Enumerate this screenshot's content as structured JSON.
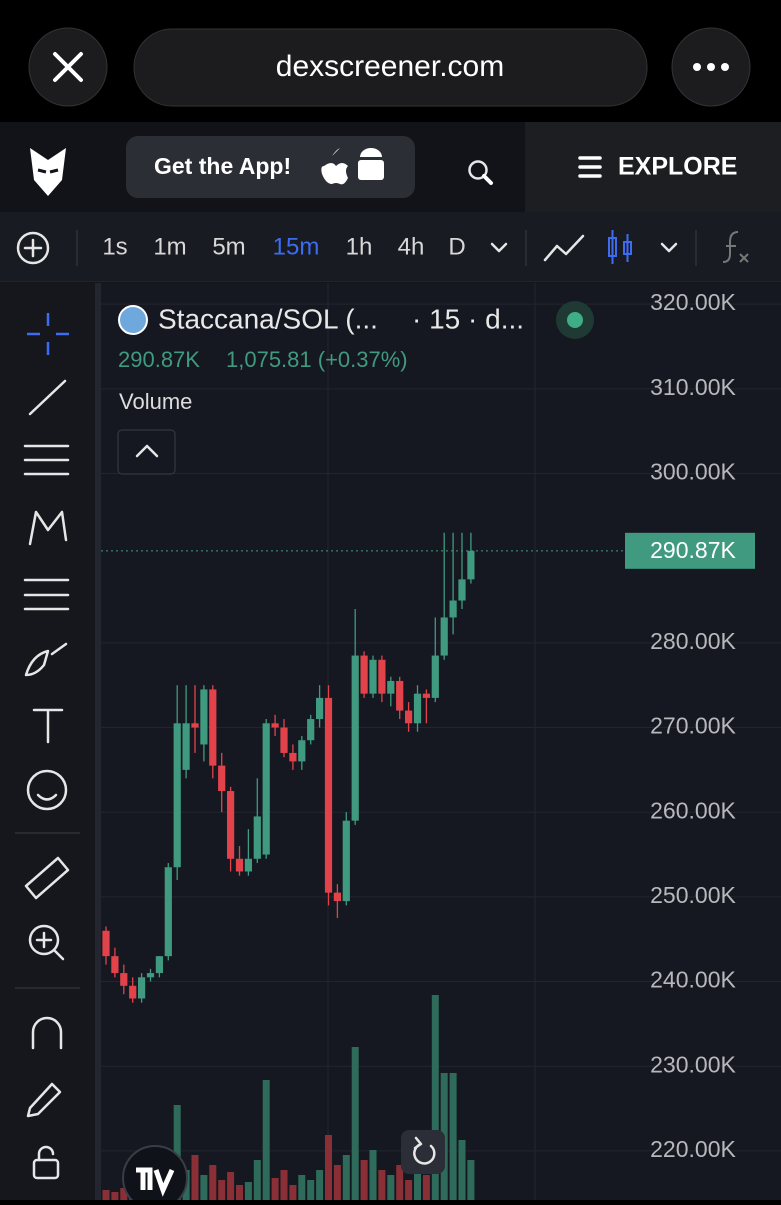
{
  "browser": {
    "url": "dexscreener.com"
  },
  "header": {
    "app_button": "Get the App!",
    "explore": "EXPLORE"
  },
  "toolbar": {
    "timeframes": [
      "1s",
      "1m",
      "5m",
      "15m",
      "1h",
      "4h",
      "D"
    ]
  },
  "chart_data": {
    "type": "candlestick",
    "title": "Staccana/SOL (...",
    "subtitle": "· 15 · d...",
    "legend": {
      "price": "290.87K",
      "change": "1,075.81 (+0.37%)",
      "volume": "Volume"
    },
    "up_color": "#3f9a80",
    "down_color": "#e2434b",
    "ohlc": [
      [
        246,
        246.5,
        242,
        243
      ],
      [
        243,
        244,
        240.5,
        241
      ],
      [
        241,
        242,
        238.5,
        239.5
      ],
      [
        239.5,
        240.5,
        237.5,
        238
      ],
      [
        238,
        241,
        237.5,
        240.5
      ],
      [
        240.5,
        241.5,
        240,
        241
      ],
      [
        241,
        243,
        240.5,
        243
      ],
      [
        243,
        254,
        242.5,
        253.5
      ],
      [
        253.5,
        275,
        252,
        270.5
      ],
      [
        265,
        275,
        264,
        270.5
      ],
      [
        270.5,
        275,
        267,
        270
      ],
      [
        268,
        275,
        266,
        274.5
      ],
      [
        274.5,
        275,
        264,
        265.5
      ],
      [
        265.5,
        267,
        260,
        262.5
      ],
      [
        262.5,
        263,
        253,
        254.5
      ],
      [
        254.5,
        256,
        252.5,
        253
      ],
      [
        253,
        258,
        252.5,
        254.5
      ],
      [
        254.5,
        264,
        254,
        259.5
      ],
      [
        255,
        271,
        254.5,
        270.5
      ],
      [
        270.5,
        271.5,
        269,
        270
      ],
      [
        270,
        271,
        266.5,
        267
      ],
      [
        267,
        268,
        265,
        266
      ],
      [
        266,
        269,
        265,
        268.5
      ],
      [
        268.5,
        271.5,
        268,
        271
      ],
      [
        271,
        275,
        270,
        273.5
      ],
      [
        273.5,
        275,
        249,
        250.5
      ],
      [
        250.5,
        251.5,
        247.5,
        249.5
      ],
      [
        249.5,
        260,
        249,
        259
      ],
      [
        259,
        284,
        258.5,
        278.5
      ],
      [
        278.5,
        279,
        273.5,
        274
      ],
      [
        274,
        278.5,
        273.5,
        278
      ],
      [
        278,
        278.5,
        273,
        274
      ],
      [
        274,
        276,
        272.5,
        275.5
      ],
      [
        275.5,
        276,
        271,
        272
      ],
      [
        272,
        273,
        269.5,
        270.5
      ],
      [
        270.5,
        275,
        269.5,
        274
      ],
      [
        274,
        274.5,
        270.5,
        273.5
      ],
      [
        273.5,
        283,
        273,
        278.5
      ],
      [
        278.5,
        293,
        278,
        283
      ],
      [
        283,
        293,
        281,
        285
      ],
      [
        285,
        293,
        284,
        287.5
      ],
      [
        287.5,
        293,
        287,
        290.87
      ]
    ],
    "volume": [
      10,
      8,
      12,
      6,
      9,
      5,
      20,
      40,
      95,
      30,
      45,
      25,
      35,
      20,
      28,
      15,
      18,
      40,
      120,
      22,
      30,
      15,
      25,
      20,
      30,
      65,
      35,
      45,
      153,
      40,
      50,
      30,
      25,
      35,
      20,
      30,
      25,
      205,
      127,
      127,
      60,
      40
    ],
    "last_price": {
      "value": 290.87,
      "label": "290.87K"
    },
    "ylim": [
      214.2,
      322.5
    ],
    "yticks": [
      {
        "value": 320,
        "label": "320.00K"
      },
      {
        "value": 310,
        "label": "310.00K"
      },
      {
        "value": 300,
        "label": "300.00K"
      },
      {
        "value": 280,
        "label": "280.00K"
      },
      {
        "value": 270,
        "label": "270.00K"
      },
      {
        "value": 260,
        "label": "260.00K"
      },
      {
        "value": 250,
        "label": "250.00K"
      },
      {
        "value": 240,
        "label": "240.00K"
      },
      {
        "value": 230,
        "label": "230.00K"
      },
      {
        "value": 220,
        "label": "220.00K"
      }
    ]
  }
}
